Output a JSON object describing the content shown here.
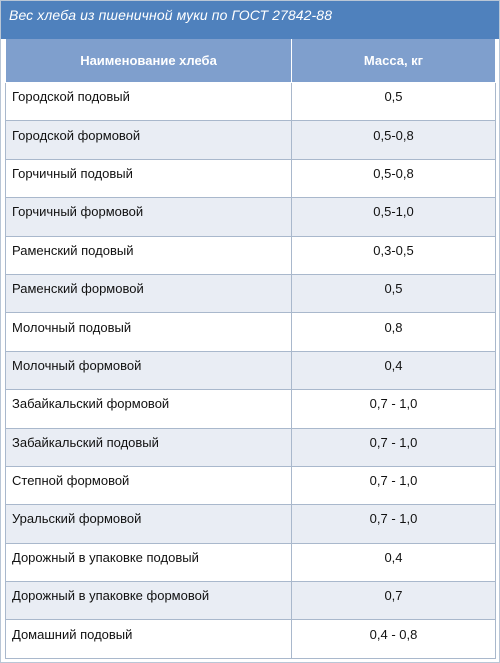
{
  "caption": "Вес хлеба из пшеничной муки по ГОСТ 27842-88",
  "table": {
    "headers": [
      "Наименование хлеба",
      "Масса, кг"
    ],
    "rows": [
      [
        "Городской подовый",
        "0,5"
      ],
      [
        "Городской формовой",
        "0,5-0,8"
      ],
      [
        "Горчичный подовый",
        "0,5-0,8"
      ],
      [
        "Горчичный формовой",
        "0,5-1,0"
      ],
      [
        "Раменский подовый",
        "0,3-0,5"
      ],
      [
        "Раменский формовой",
        "0,5"
      ],
      [
        "Молочный подовый",
        "0,8"
      ],
      [
        "Молочный формовой",
        "0,4"
      ],
      [
        "Забайкальский формовой",
        "0,7 - 1,0"
      ],
      [
        "Забайкальский подовый",
        "0,7 - 1,0"
      ],
      [
        "Степной формовой",
        "0,7 - 1,0"
      ],
      [
        "Уральский формовой",
        "0,7 - 1,0"
      ],
      [
        "Дорожный в упаковке подовый",
        "0,4"
      ],
      [
        "Дорожный в упаковке формовой",
        "0,7"
      ],
      [
        "Домашний подовый",
        "0,4 - 0,8"
      ]
    ]
  },
  "colors": {
    "caption_bg": "#4f81bd",
    "header_bg": "#7f9fcd",
    "row_alt_bg": "#e9edf4",
    "border": "#a9b8cc"
  }
}
